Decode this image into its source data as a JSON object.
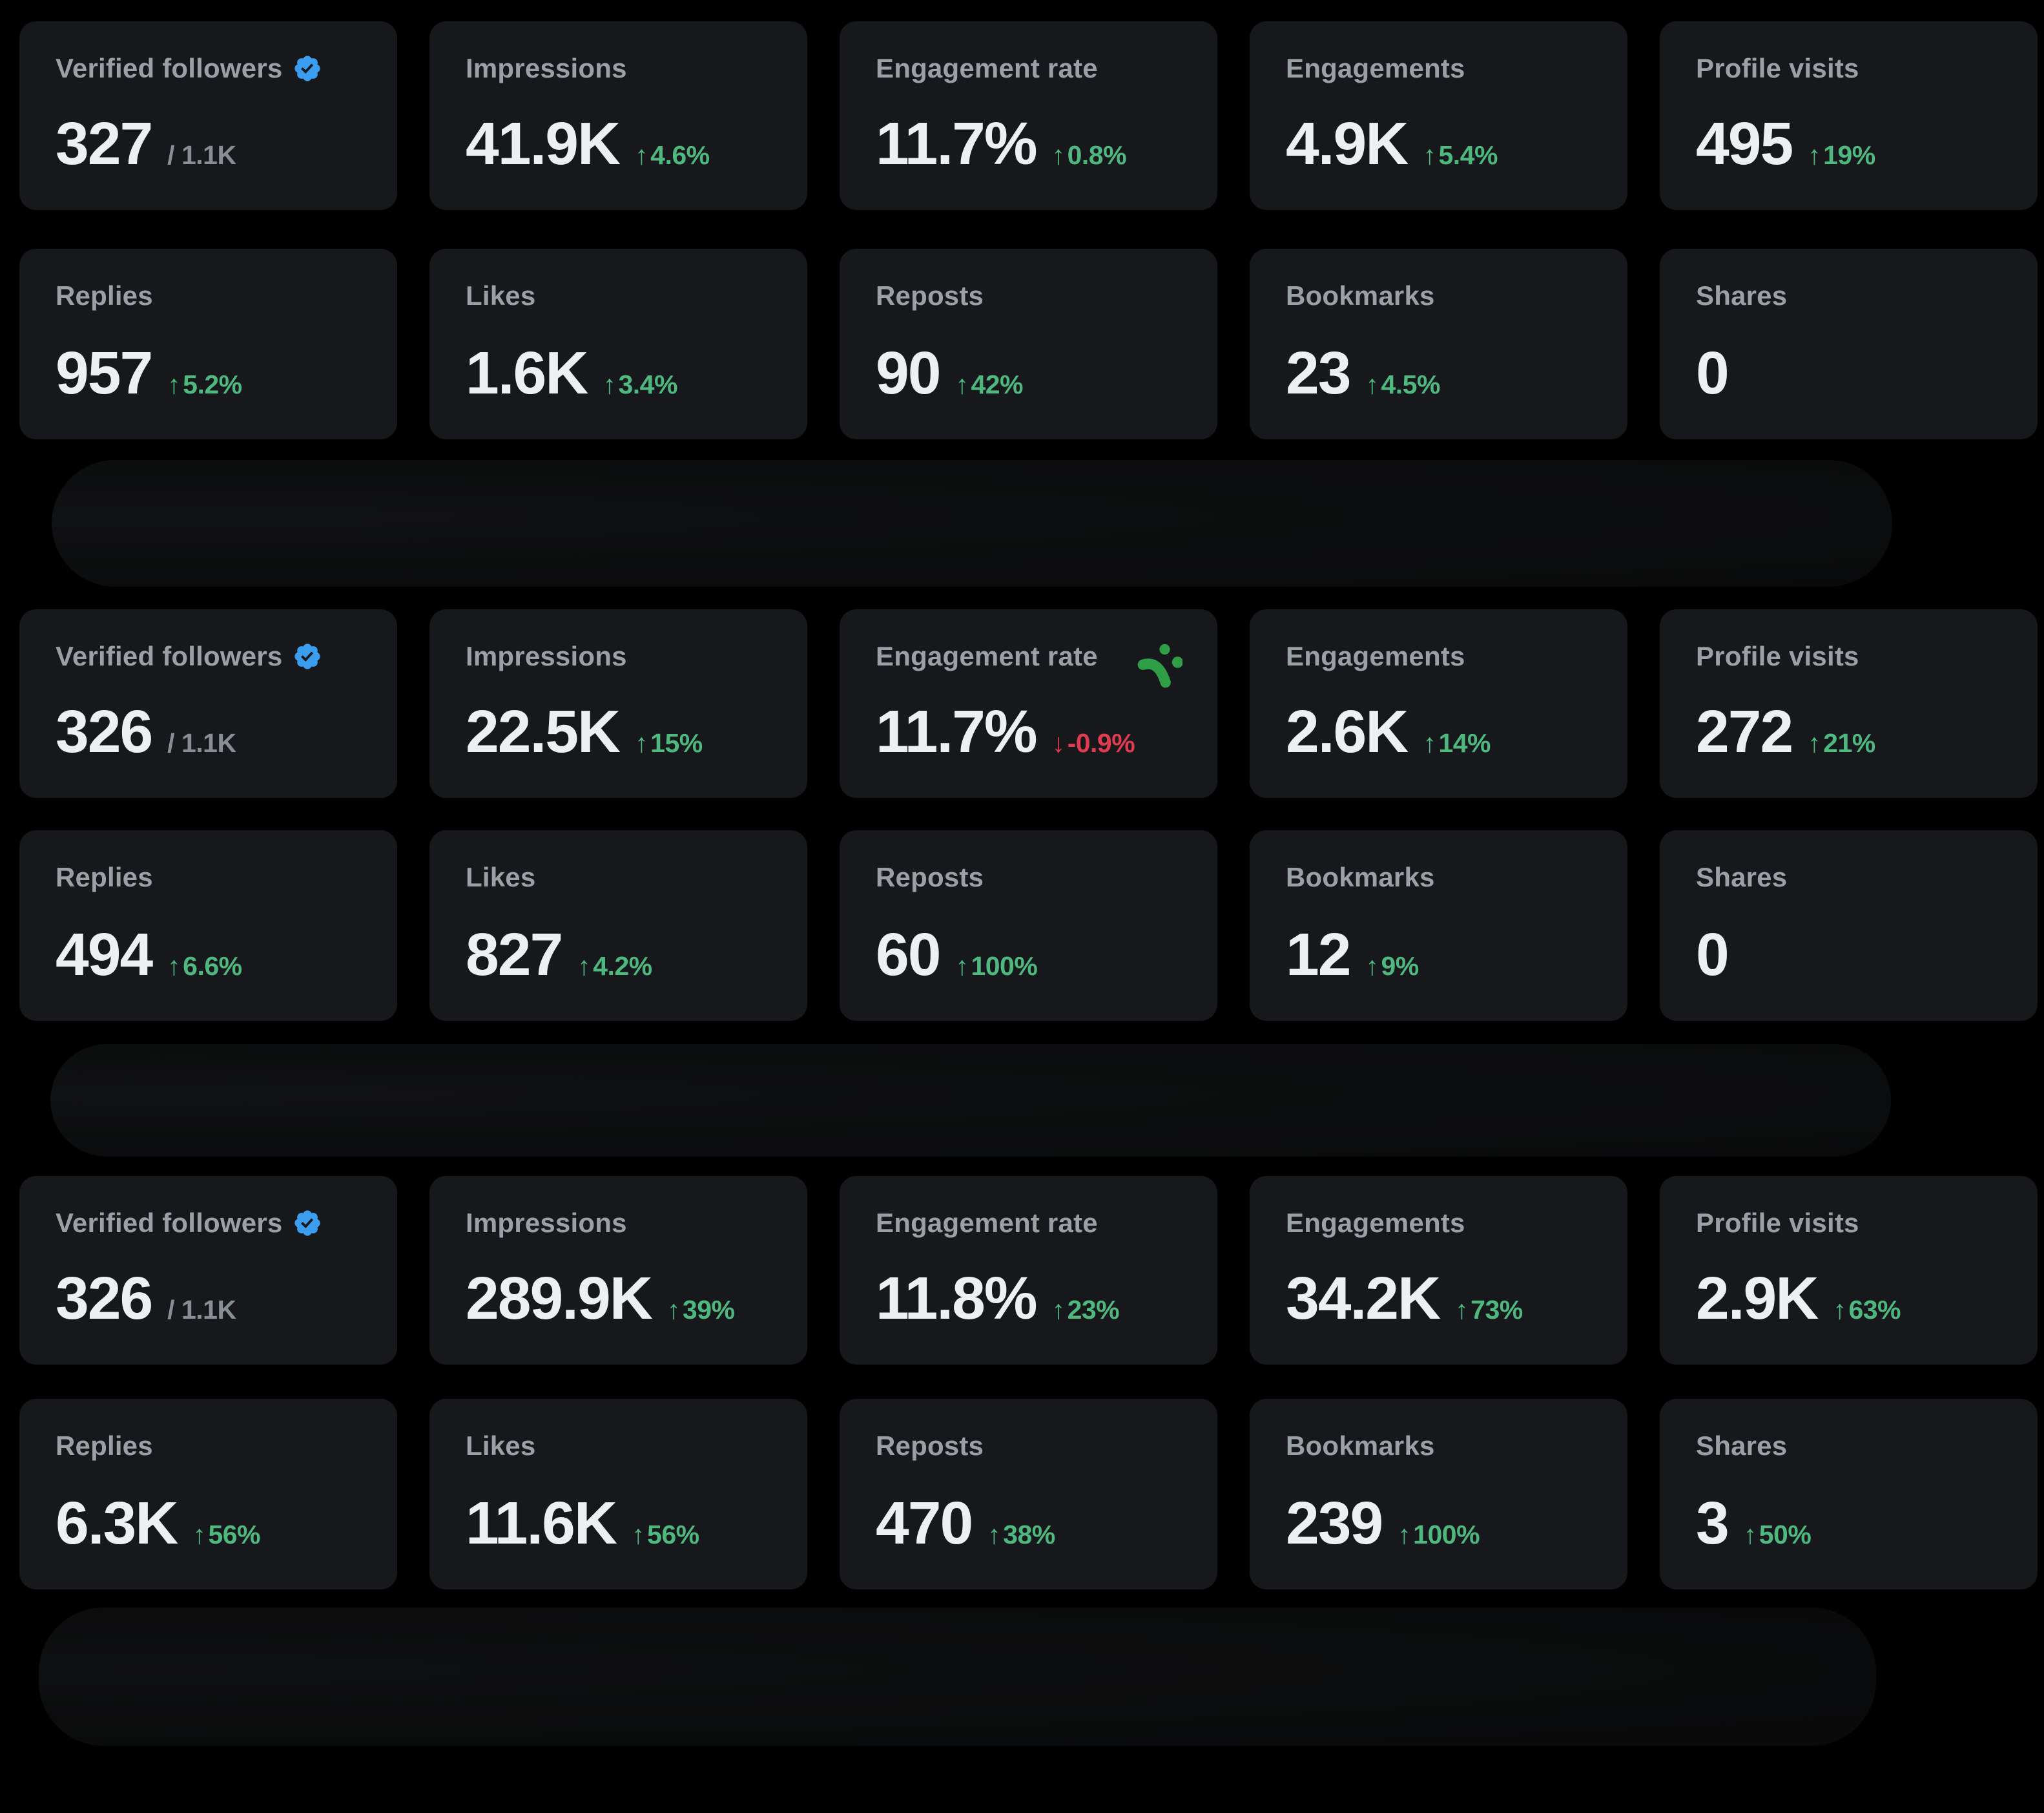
{
  "page": {
    "background": "#000000",
    "card_background": "#16181c",
    "label_color": "#9aa0a5",
    "value_color": "#edf0f1",
    "positive_color": "#4eb87f",
    "negative_color": "#e03b50",
    "verified_badge_color": "#3b9df0",
    "cursor_icon_color": "#2f9e47"
  },
  "sections": [
    {
      "name": "period-1",
      "cards": [
        {
          "label": "Verified followers",
          "value": "327",
          "secondary": "/ 1.1K",
          "badge": "verified-badge-icon"
        },
        {
          "label": "Impressions",
          "value": "41.9K",
          "arrow": "↑",
          "delta": "4.6%",
          "dir": "up"
        },
        {
          "label": "Engagement rate",
          "value": "11.7%",
          "arrow": "↑",
          "delta": "0.8%",
          "dir": "up"
        },
        {
          "label": "Engagements",
          "value": "4.9K",
          "arrow": "↑",
          "delta": "5.4%",
          "dir": "up"
        },
        {
          "label": "Profile visits",
          "value": "495",
          "arrow": "↑",
          "delta": "19%",
          "dir": "up"
        },
        {
          "label": "Replies",
          "value": "957",
          "arrow": "↑",
          "delta": "5.2%",
          "dir": "up"
        },
        {
          "label": "Likes",
          "value": "1.6K",
          "arrow": "↑",
          "delta": "3.4%",
          "dir": "up"
        },
        {
          "label": "Reposts",
          "value": "90",
          "arrow": "↑",
          "delta": "42%",
          "dir": "up"
        },
        {
          "label": "Bookmarks",
          "value": "23",
          "arrow": "↑",
          "delta": "4.5%",
          "dir": "up"
        },
        {
          "label": "Shares",
          "value": "0"
        }
      ]
    },
    {
      "name": "period-2",
      "cards": [
        {
          "label": "Verified followers",
          "value": "326",
          "secondary": "/ 1.1K",
          "badge": "verified-badge-icon"
        },
        {
          "label": "Impressions",
          "value": "22.5K",
          "arrow": "↑",
          "delta": "15%",
          "dir": "up"
        },
        {
          "label": "Engagement rate",
          "value": "11.7%",
          "arrow": "↓",
          "delta": "-0.9%",
          "dir": "down",
          "icon": "green-cursor-icon"
        },
        {
          "label": "Engagements",
          "value": "2.6K",
          "arrow": "↑",
          "delta": "14%",
          "dir": "up"
        },
        {
          "label": "Profile visits",
          "value": "272",
          "arrow": "↑",
          "delta": "21%",
          "dir": "up"
        },
        {
          "label": "Replies",
          "value": "494",
          "arrow": "↑",
          "delta": "6.6%",
          "dir": "up"
        },
        {
          "label": "Likes",
          "value": "827",
          "arrow": "↑",
          "delta": "4.2%",
          "dir": "up"
        },
        {
          "label": "Reposts",
          "value": "60",
          "arrow": "↑",
          "delta": "100%",
          "dir": "up"
        },
        {
          "label": "Bookmarks",
          "value": "12",
          "arrow": "↑",
          "delta": "9%",
          "dir": "up"
        },
        {
          "label": "Shares",
          "value": "0"
        }
      ]
    },
    {
      "name": "period-3",
      "cards": [
        {
          "label": "Verified followers",
          "value": "326",
          "secondary": "/ 1.1K",
          "badge": "verified-badge-icon"
        },
        {
          "label": "Impressions",
          "value": "289.9K",
          "arrow": "↑",
          "delta": "39%",
          "dir": "up"
        },
        {
          "label": "Engagement rate",
          "value": "11.8%",
          "arrow": "↑",
          "delta": "23%",
          "dir": "up"
        },
        {
          "label": "Engagements",
          "value": "34.2K",
          "arrow": "↑",
          "delta": "73%",
          "dir": "up"
        },
        {
          "label": "Profile visits",
          "value": "2.9K",
          "arrow": "↑",
          "delta": "63%",
          "dir": "up"
        },
        {
          "label": "Replies",
          "value": "6.3K",
          "arrow": "↑",
          "delta": "56%",
          "dir": "up"
        },
        {
          "label": "Likes",
          "value": "11.6K",
          "arrow": "↑",
          "delta": "56%",
          "dir": "up"
        },
        {
          "label": "Reposts",
          "value": "470",
          "arrow": "↑",
          "delta": "38%",
          "dir": "up"
        },
        {
          "label": "Bookmarks",
          "value": "239",
          "arrow": "↑",
          "delta": "100%",
          "dir": "up"
        },
        {
          "label": "Shares",
          "value": "3",
          "arrow": "↑",
          "delta": "50%",
          "dir": "up"
        }
      ]
    }
  ]
}
